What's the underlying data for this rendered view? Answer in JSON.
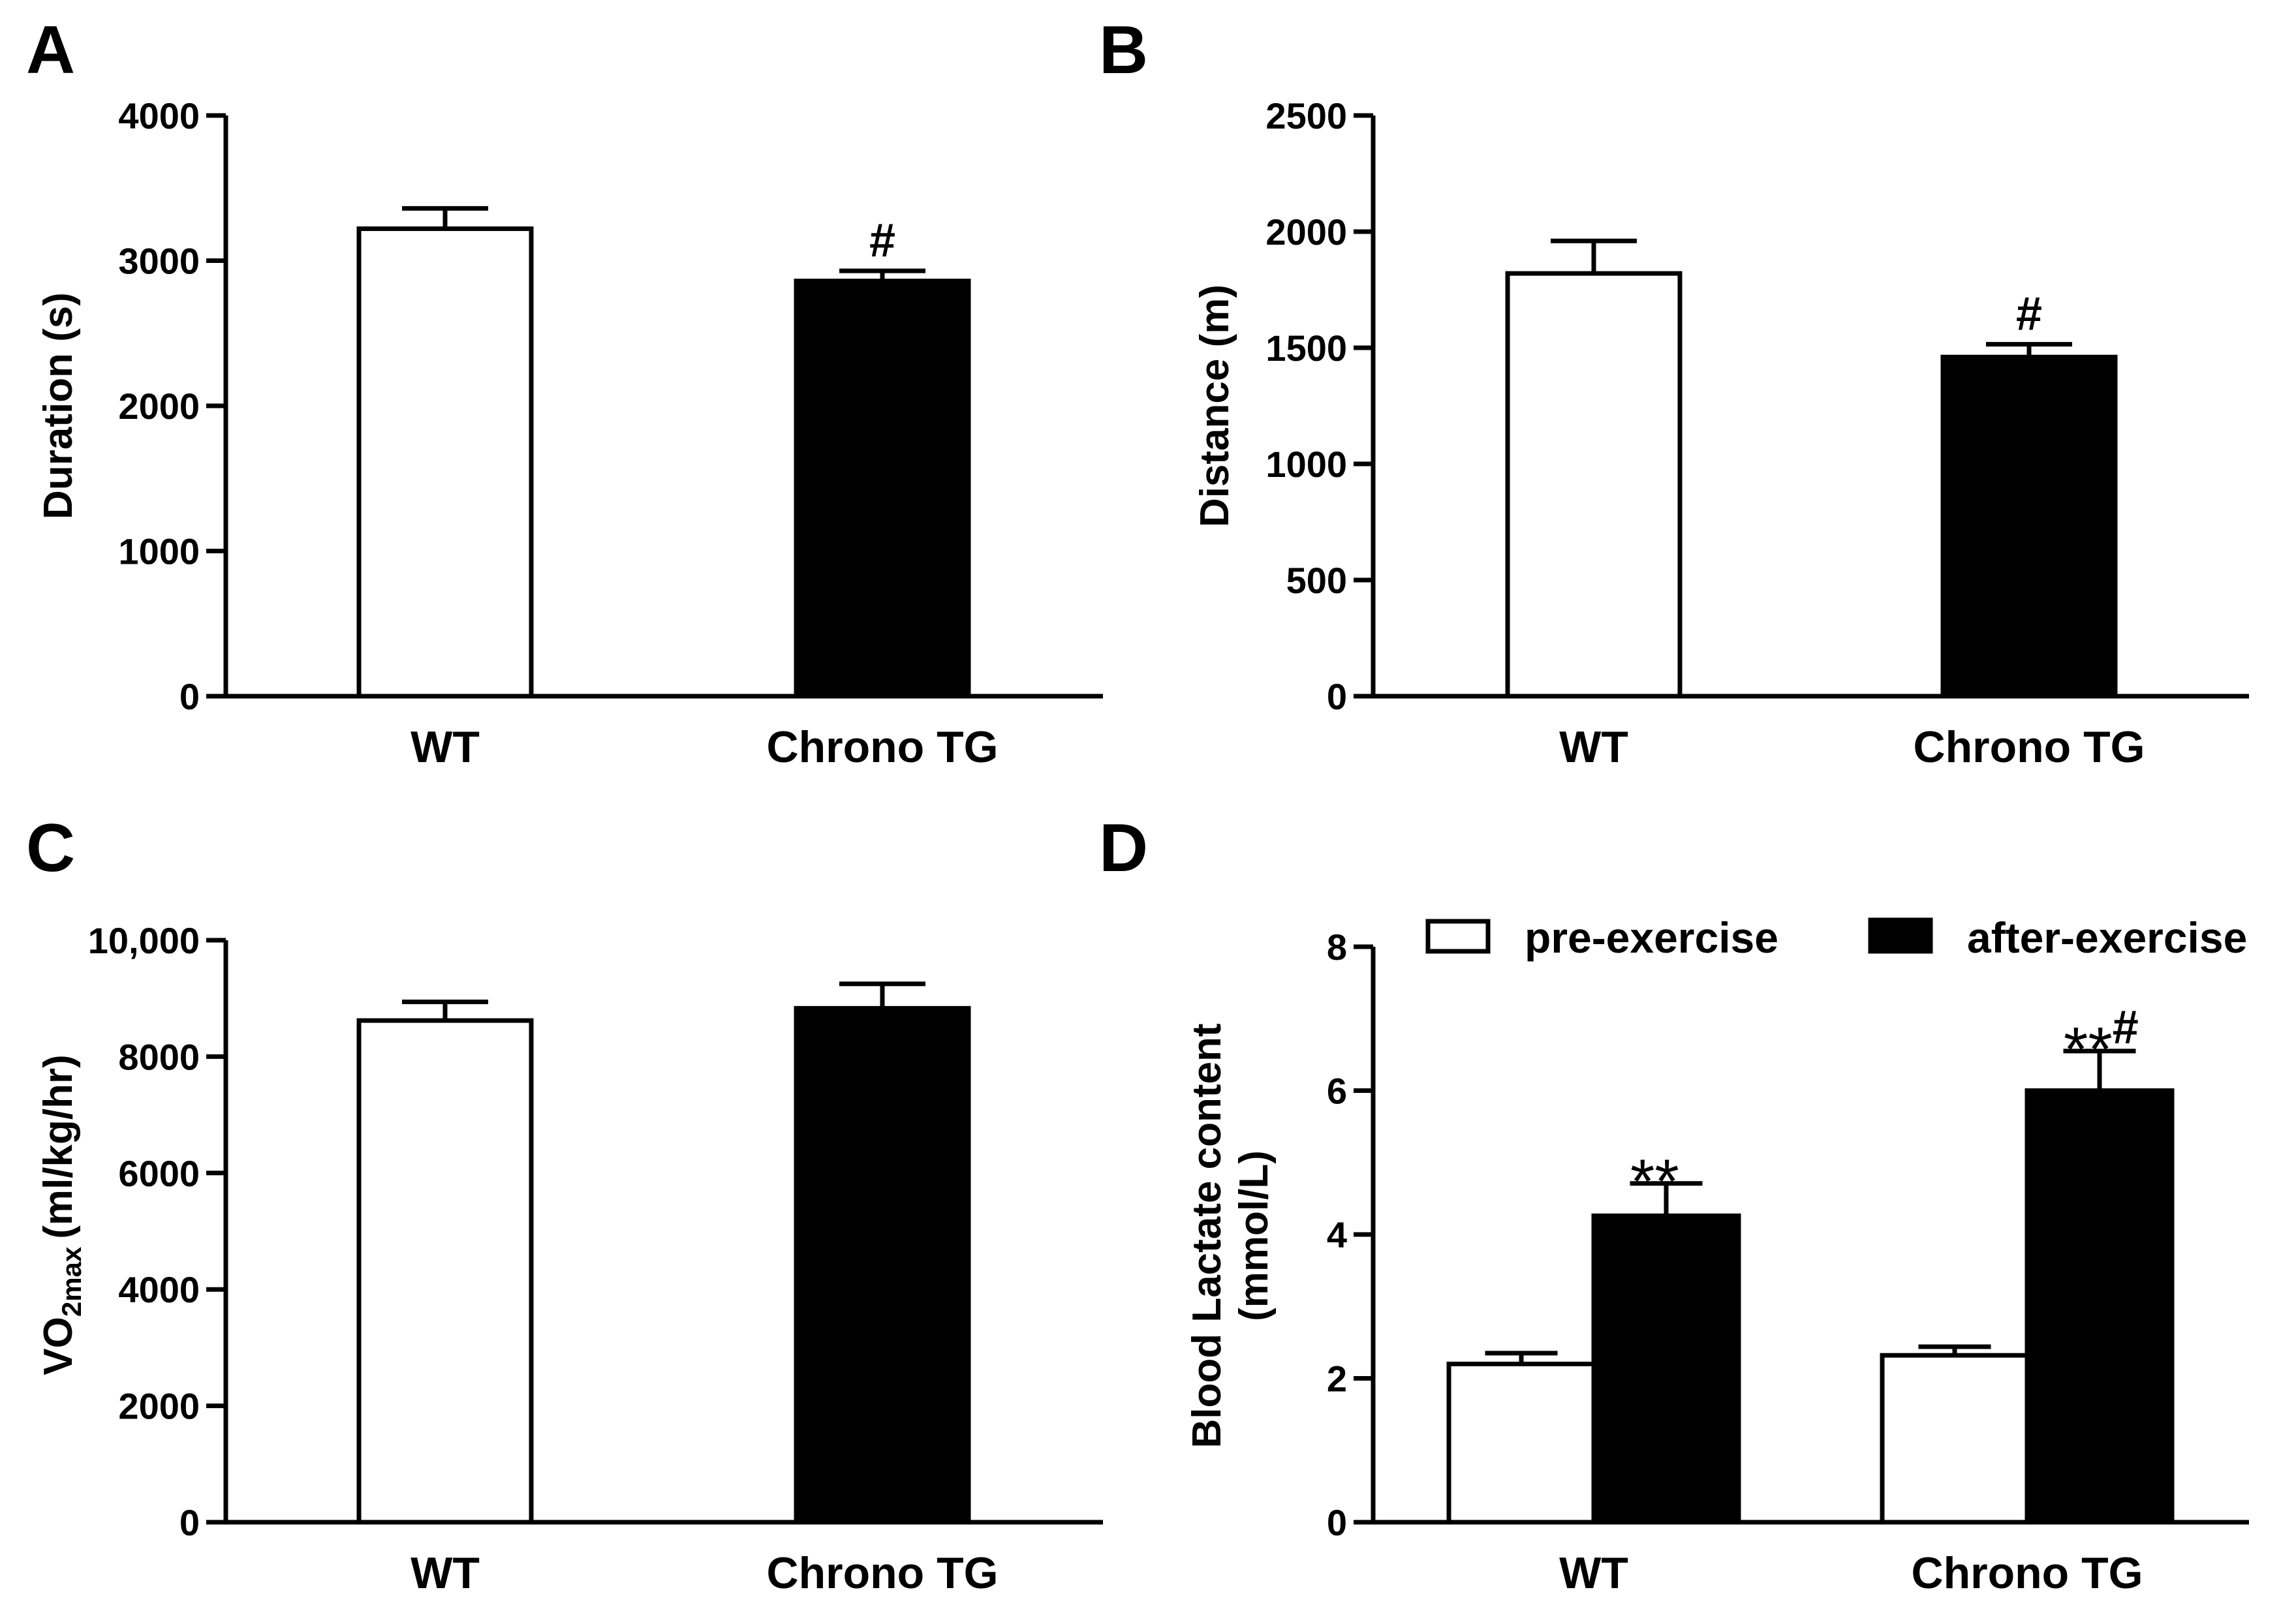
{
  "colors": {
    "axis": "#000000",
    "open_bar": "#ffffff",
    "filled_bar": "#000000",
    "background": "#ffffff"
  },
  "chart_data": [
    {
      "panel": "A",
      "type": "bar",
      "categories": [
        "WT",
        "Chrono TG"
      ],
      "series": [
        {
          "name": "",
          "values": [
            3220,
            2860
          ],
          "errors": [
            140,
            70
          ],
          "fills": [
            "open",
            "filled"
          ]
        }
      ],
      "annotations": [
        {
          "category": 1,
          "text": "#"
        }
      ],
      "ylabel": "Duration (s)",
      "ylim": [
        0,
        4000
      ],
      "yticks": [
        0,
        1000,
        2000,
        3000,
        4000
      ],
      "ytick_labels": [
        "0",
        "1000",
        "2000",
        "3000",
        "4000"
      ]
    },
    {
      "panel": "B",
      "type": "bar",
      "categories": [
        "WT",
        "Chrono TG"
      ],
      "series": [
        {
          "name": "",
          "values": [
            1820,
            1460
          ],
          "errors": [
            140,
            55
          ],
          "fills": [
            "open",
            "filled"
          ]
        }
      ],
      "annotations": [
        {
          "category": 1,
          "text": "#"
        }
      ],
      "ylabel": "Distance (m)",
      "ylim": [
        0,
        2500
      ],
      "yticks": [
        0,
        500,
        1000,
        1500,
        2000,
        2500
      ],
      "ytick_labels": [
        "0",
        "500",
        "1000",
        "1500",
        "2000",
        "2500"
      ]
    },
    {
      "panel": "C",
      "type": "bar",
      "categories": [
        "WT",
        "Chrono TG"
      ],
      "series": [
        {
          "name": "",
          "values": [
            8620,
            8830
          ],
          "errors": [
            320,
            420
          ],
          "fills": [
            "open",
            "filled"
          ]
        }
      ],
      "annotations": [],
      "ylabel_parts": {
        "main": "VO",
        "sub": "2max",
        "unit": "(ml/kg/hr)"
      },
      "ylim": [
        0,
        10000
      ],
      "yticks": [
        0,
        2000,
        4000,
        6000,
        8000,
        10000
      ],
      "ytick_labels": [
        "0",
        "2000",
        "4000",
        "6000",
        "8000",
        "10,000"
      ]
    },
    {
      "panel": "D",
      "type": "bar",
      "categories": [
        "WT",
        "Chrono TG"
      ],
      "series": [
        {
          "name": "pre-exercise",
          "values": [
            2.2,
            2.32
          ],
          "errors": [
            0.15,
            0.12
          ],
          "fill": "open"
        },
        {
          "name": "after-exercise",
          "values": [
            4.26,
            6.0
          ],
          "errors": [
            0.45,
            0.55
          ],
          "fill": "filled"
        }
      ],
      "annotations": [
        {
          "category": 0,
          "series": 1,
          "stars": "**",
          "hash": ""
        },
        {
          "category": 1,
          "series": 1,
          "stars": "**",
          "hash": "#"
        }
      ],
      "ylabel_lines": [
        "Blood Lactate content",
        "(mmol/L)"
      ],
      "ylim": [
        0,
        8
      ],
      "yticks": [
        0,
        2,
        4,
        6,
        8
      ],
      "ytick_labels": [
        "0",
        "2",
        "4",
        "6",
        "8"
      ],
      "legend": [
        "pre-exercise",
        "after-exercise"
      ],
      "legend_position": "top"
    }
  ]
}
